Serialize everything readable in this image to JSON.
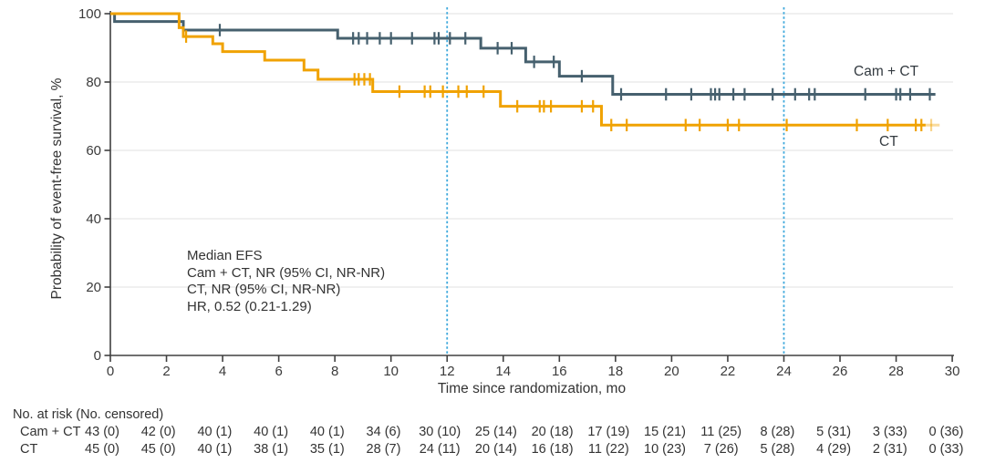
{
  "chart_data": {
    "type": "line",
    "subtype": "kaplan-meier-step",
    "title": "",
    "xlabel": "Time since randomization, mo",
    "ylabel": "Probability of event-free survival, %",
    "xlim": [
      0,
      30
    ],
    "ylim": [
      0,
      100
    ],
    "xticks": [
      0,
      2,
      4,
      6,
      8,
      10,
      12,
      14,
      16,
      18,
      20,
      22,
      24,
      26,
      28,
      30
    ],
    "yticks": [
      0,
      20,
      40,
      60,
      80,
      100
    ],
    "grid": "horizontal",
    "gridline_color": "#EBEBEB",
    "axis_color": "#404040",
    "reference_lines_x": [
      12,
      24
    ],
    "reference_line_color": "#3FA9DC",
    "series": [
      {
        "name": "Cam + CT",
        "color": "#46606E",
        "steps": [
          [
            0,
            100
          ],
          [
            0.15,
            97.7
          ],
          [
            2.6,
            95.2
          ],
          [
            8.1,
            92.8
          ],
          [
            13.2,
            89.9
          ],
          [
            14.8,
            85.9
          ],
          [
            16,
            81.7
          ],
          [
            17.9,
            76.4
          ],
          [
            29.4,
            76.4
          ]
        ],
        "censor_marks": [
          [
            3.9,
            95.2
          ],
          [
            8.65,
            92.8
          ],
          [
            8.85,
            92.8
          ],
          [
            9.15,
            92.8
          ],
          [
            9.6,
            92.8
          ],
          [
            10,
            92.8
          ],
          [
            10.75,
            92.8
          ],
          [
            11.55,
            92.8
          ],
          [
            11.7,
            92.8
          ],
          [
            12.1,
            92.8
          ],
          [
            12.65,
            92.8
          ],
          [
            13.8,
            89.9
          ],
          [
            14.3,
            89.9
          ],
          [
            15.1,
            85.9
          ],
          [
            15.8,
            85.9
          ],
          [
            16.8,
            81.7
          ],
          [
            18.2,
            76.4
          ],
          [
            19.8,
            76.4
          ],
          [
            20.7,
            76.4
          ],
          [
            21.4,
            76.4
          ],
          [
            21.55,
            76.4
          ],
          [
            21.7,
            76.4
          ],
          [
            22.2,
            76.4
          ],
          [
            22.6,
            76.4
          ],
          [
            23.6,
            76.4
          ],
          [
            24.4,
            76.4
          ],
          [
            24.9,
            76.4
          ],
          [
            25.1,
            76.4
          ],
          [
            26.9,
            76.4
          ],
          [
            28,
            76.4
          ],
          [
            28.15,
            76.4
          ],
          [
            28.5,
            76.4
          ],
          [
            29.2,
            76.4
          ]
        ]
      },
      {
        "name": "CT",
        "color": "#F0A202",
        "steps": [
          [
            0,
            100
          ],
          [
            2.45,
            95.9
          ],
          [
            2.6,
            93.3
          ],
          [
            3.65,
            91.2
          ],
          [
            4,
            88.9
          ],
          [
            5.5,
            86.4
          ],
          [
            6.9,
            83.5
          ],
          [
            7.4,
            80.8
          ],
          [
            9.35,
            77.2
          ],
          [
            13.9,
            72.9
          ],
          [
            17.5,
            67.4
          ],
          [
            29.05,
            67.4
          ]
        ],
        "censor_marks": [
          [
            2.7,
            93.3
          ],
          [
            8.7,
            80.8
          ],
          [
            8.85,
            80.8
          ],
          [
            9.05,
            80.8
          ],
          [
            9.25,
            80.8
          ],
          [
            10.3,
            77.2
          ],
          [
            11.2,
            77.2
          ],
          [
            11.4,
            77.2
          ],
          [
            11.85,
            77.2
          ],
          [
            12.4,
            77.2
          ],
          [
            12.7,
            77.2
          ],
          [
            13.3,
            77.2
          ],
          [
            14.5,
            72.9
          ],
          [
            15.3,
            72.9
          ],
          [
            15.45,
            72.9
          ],
          [
            15.7,
            72.9
          ],
          [
            16.8,
            72.9
          ],
          [
            17.2,
            72.9
          ],
          [
            17.85,
            67.4
          ],
          [
            18.4,
            67.4
          ],
          [
            20.5,
            67.4
          ],
          [
            21,
            67.4
          ],
          [
            22,
            67.4
          ],
          [
            22.4,
            67.4
          ],
          [
            24.1,
            67.4
          ],
          [
            26.6,
            67.4
          ],
          [
            27.7,
            67.4
          ],
          [
            28.7,
            67.4
          ],
          [
            28.9,
            67.4
          ]
        ],
        "faded_tail_to": 29.55,
        "faded_censor_at": 29.25
      }
    ],
    "annotation": {
      "lines": [
        "Median EFS",
        "Cam + CT, NR (95% CI, NR-NR)",
        "CT, NR (95% CI, NR-NR)",
        "HR, 0.52 (0.21-1.29)"
      ]
    }
  },
  "risk_table": {
    "header": "No. at risk (No. censored)",
    "rows": [
      {
        "name": "Cam + CT",
        "values": [
          "43 (0)",
          "42 (0)",
          "40 (1)",
          "40 (1)",
          "40 (1)",
          "34 (6)",
          "30 (10)",
          "25 (14)",
          "20 (18)",
          "17 (19)",
          "15 (21)",
          "11 (25)",
          "8 (28)",
          "5 (31)",
          "3 (33)",
          "0 (36)"
        ]
      },
      {
        "name": "CT",
        "values": [
          "45 (0)",
          "45 (0)",
          "40 (1)",
          "38 (1)",
          "35 (1)",
          "28 (7)",
          "24 (11)",
          "20 (14)",
          "16 (18)",
          "11 (22)",
          "10 (23)",
          "7 (26)",
          "5 (28)",
          "4 (29)",
          "2 (31)",
          "0 (33)"
        ]
      }
    ]
  }
}
